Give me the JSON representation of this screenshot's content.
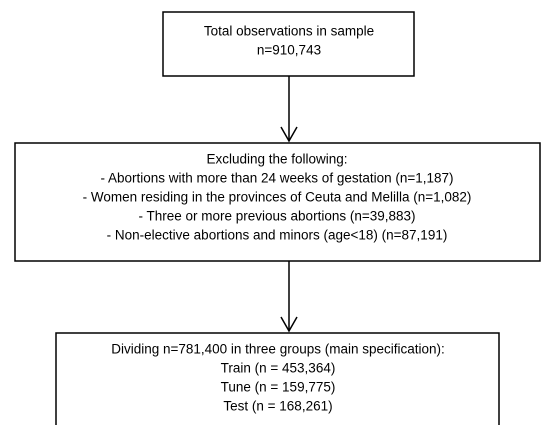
{
  "nodes": [
    {
      "lines": [
        "Total observations in sample",
        "n=910,743"
      ]
    },
    {
      "lines": [
        "Excluding the following:",
        "- Abortions with more than 24 weeks of gestation (n=1,187)",
        "- Women residing in the provinces of Ceuta and Melilla (n=1,082)",
        "- Three or more previous abortions (n=39,883)",
        "- Non-elective abortions and minors (age<18) (n=87,191)"
      ]
    },
    {
      "lines": [
        "Dividing n=781,400 in three groups (main specification):",
        "Train (n = 453,364)",
        "Tune (n = 159,775)",
        "Test (n = 168,261)"
      ]
    }
  ]
}
